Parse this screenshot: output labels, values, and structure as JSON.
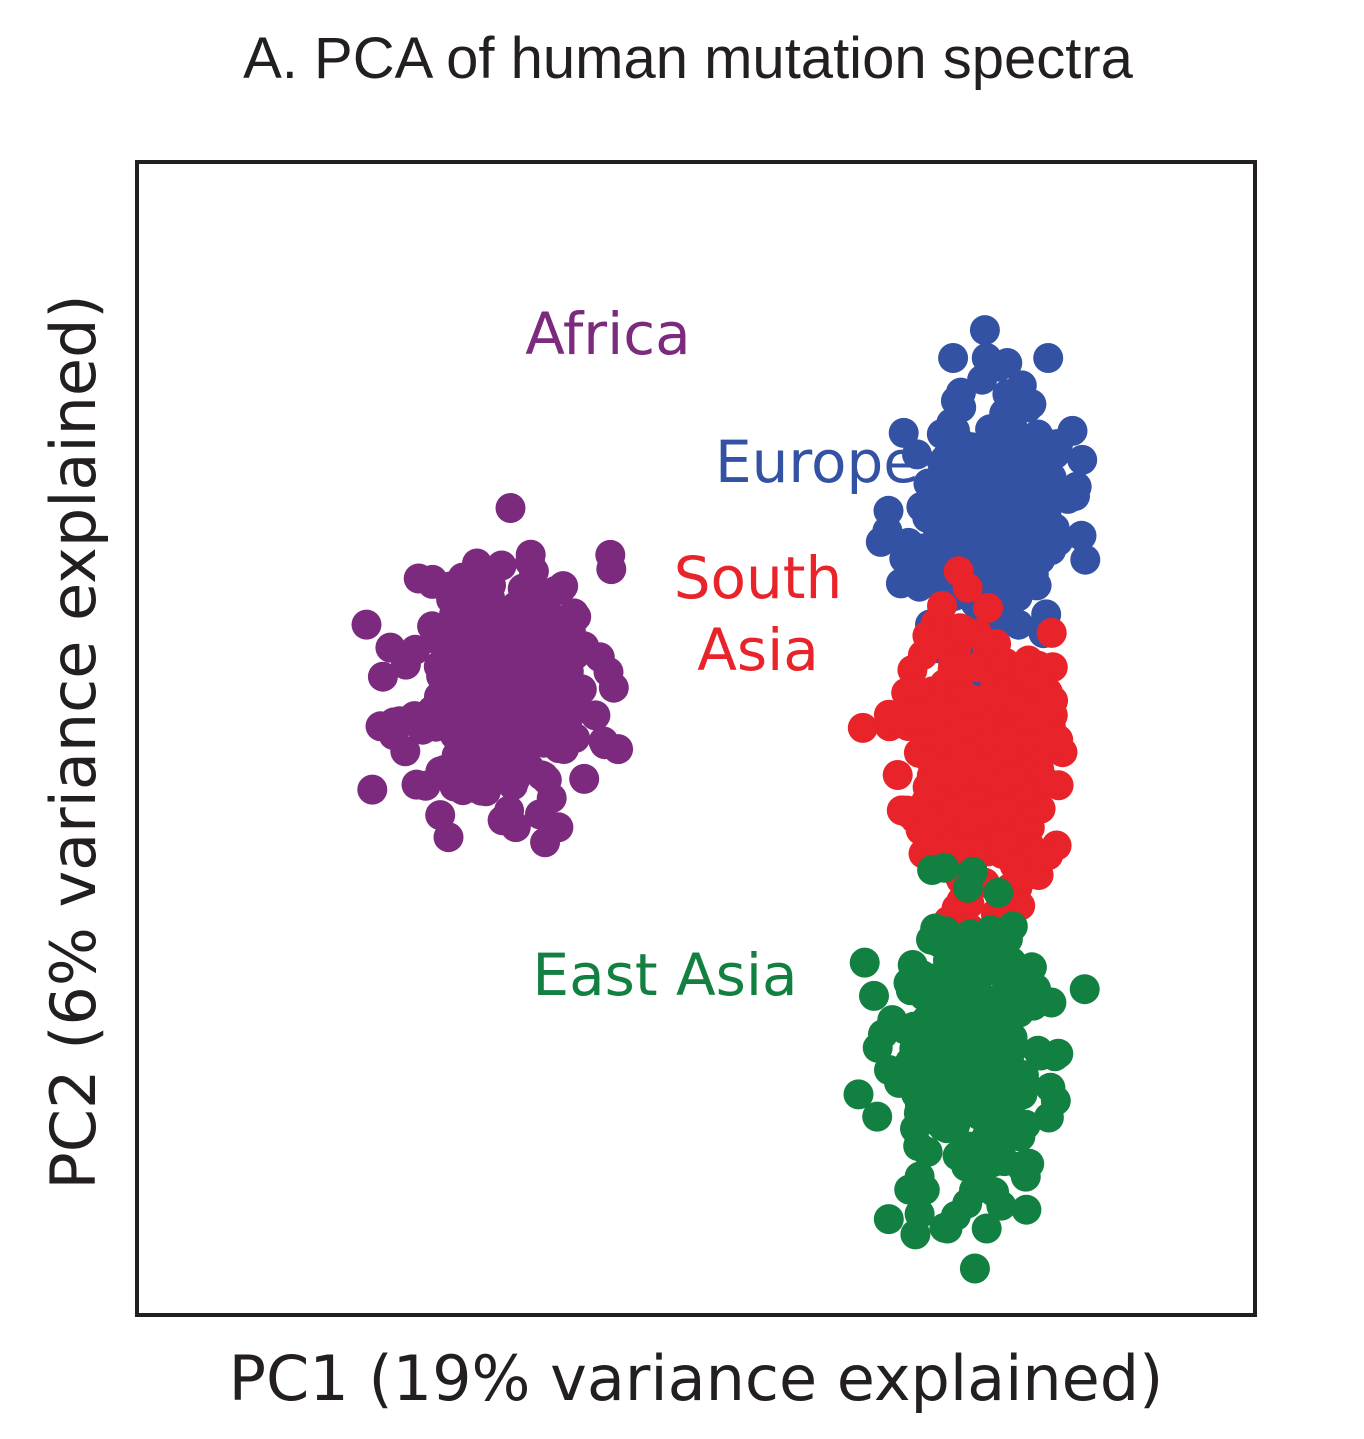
{
  "chart_data": {
    "type": "scatter",
    "title": "A. PCA of human mutation spectra",
    "xlabel": "PC1 (19% variance explained)",
    "ylabel": "PC2 (6% variance explained)",
    "xlim": [
      -1,
      1
    ],
    "ylim": [
      -1,
      1
    ],
    "grid": false,
    "legend": "direct labels next to clusters",
    "ticks": "none",
    "series": [
      {
        "name": "Africa",
        "color": "#7b2a7d",
        "center": [
          -0.35,
          0.1
        ],
        "spread": [
          0.085,
          0.11
        ],
        "count": 260,
        "seed": 11,
        "outliers": [
          [
            -0.53,
            0.03
          ],
          [
            -0.5,
            -0.08
          ],
          [
            -0.27,
            -0.18
          ],
          [
            -0.37,
            0.21
          ],
          [
            -0.29,
            0.29
          ],
          [
            -0.2,
            -0.07
          ],
          [
            -0.18,
            0.04
          ],
          [
            -0.2,
            0.16
          ],
          [
            -0.31,
            0.26
          ],
          [
            -0.27,
            0.14
          ]
        ]
      },
      {
        "name": "Europe",
        "color": "#3452a4",
        "center": [
          0.52,
          0.37
        ],
        "spread": [
          0.07,
          0.11
        ],
        "count": 260,
        "seed": 23,
        "outliers": [
          [
            0.46,
            0.66
          ],
          [
            0.52,
            0.66
          ],
          [
            0.63,
            0.66
          ],
          [
            0.57,
            0.57
          ],
          [
            0.57,
            0.48
          ],
          [
            0.64,
            0.51
          ],
          [
            0.6,
            0.58
          ]
        ]
      },
      {
        "name": "South\nAsia",
        "color": "#e8232a",
        "center": [
          0.5,
          -0.03
        ],
        "spread": [
          0.065,
          0.12
        ],
        "count": 260,
        "seed": 37,
        "outliers": [
          [
            0.44,
            0.23
          ],
          [
            0.49,
            -0.33
          ],
          [
            0.53,
            -0.34
          ],
          [
            0.58,
            -0.29
          ],
          [
            0.57,
            -0.22
          ],
          [
            0.6,
            0.04
          ],
          [
            0.6,
            0.1
          ],
          [
            0.43,
            -0.2
          ],
          [
            0.47,
            0.29
          ]
        ]
      },
      {
        "name": "East Asia",
        "color": "#118040",
        "center": [
          0.49,
          -0.55
        ],
        "spread": [
          0.075,
          0.13
        ],
        "count": 260,
        "seed": 53,
        "outliers": [
          [
            0.38,
            -0.6
          ],
          [
            0.59,
            -0.67
          ],
          [
            0.59,
            -0.76
          ],
          [
            0.4,
            -0.76
          ],
          [
            0.45,
            -0.85
          ],
          [
            0.52,
            -0.85
          ],
          [
            0.56,
            -0.58
          ]
        ]
      }
    ]
  }
}
